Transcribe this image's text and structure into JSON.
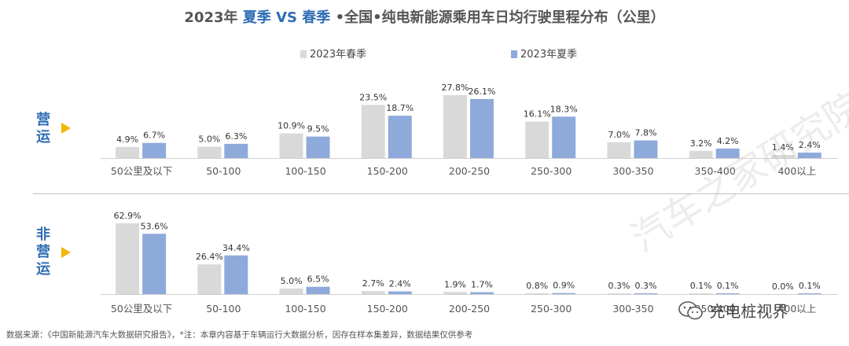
{
  "title": {
    "prefix": "2023年",
    "summer": "夏季",
    "vs": "VS",
    "spring": "春季",
    "suffix": "•全国•纯电新能源乘用车日均行驶里程分布（公里）"
  },
  "legend": {
    "spring": "2023年春季",
    "summer": "2023年夏季"
  },
  "colors": {
    "spring": "#d9d9d9",
    "summer": "#8eaadb",
    "accent": "#2f6db5",
    "arrow": "#f2b705"
  },
  "sections": {
    "operating": {
      "chars": [
        "营",
        "运"
      ]
    },
    "non_operating": {
      "chars": [
        "非",
        "营",
        "运"
      ]
    }
  },
  "chart_data": [
    {
      "type": "bar",
      "title": "营运",
      "categories": [
        "50公里及以下",
        "50-100",
        "100-150",
        "150-200",
        "200-250",
        "250-300",
        "300-350",
        "350-400",
        "400以上"
      ],
      "series": [
        {
          "name": "2023年春季",
          "values": [
            4.9,
            5.0,
            10.9,
            23.5,
            27.8,
            16.1,
            7.0,
            3.2,
            1.4
          ],
          "labels": [
            "4.9%",
            "5.0%",
            "10.9%",
            "23.5%",
            "27.8%",
            "16.1%",
            "7.0%",
            "3.2%",
            "1.4%"
          ]
        },
        {
          "name": "2023年夏季",
          "values": [
            6.7,
            6.3,
            9.5,
            18.7,
            26.1,
            18.3,
            7.8,
            4.2,
            2.4
          ],
          "labels": [
            "6.7%",
            "6.3%",
            "9.5%",
            "18.7%",
            "26.1%",
            "18.3%",
            "7.8%",
            "4.2%",
            "2.4%"
          ]
        }
      ],
      "unit": "%",
      "ylim": [
        0,
        30
      ],
      "grid": false,
      "legend": "top-center"
    },
    {
      "type": "bar",
      "title": "非营运",
      "categories": [
        "50公里及以下",
        "50-100",
        "100-150",
        "150-200",
        "200-250",
        "250-300",
        "300-350",
        "350-400",
        "400以上"
      ],
      "series": [
        {
          "name": "2023年春季",
          "values": [
            62.9,
            26.4,
            5.0,
            2.7,
            1.9,
            0.8,
            0.3,
            0.1,
            0.0
          ],
          "labels": [
            "62.9%",
            "26.4%",
            "5.0%",
            "2.7%",
            "1.9%",
            "0.8%",
            "0.3%",
            "0.1%",
            "0.0%"
          ]
        },
        {
          "name": "2023年夏季",
          "values": [
            53.6,
            34.4,
            6.5,
            2.4,
            1.7,
            0.9,
            0.3,
            0.1,
            0.1
          ],
          "labels": [
            "53.6%",
            "34.4%",
            "6.5%",
            "2.4%",
            "1.7%",
            "0.9%",
            "0.3%",
            "0.1%",
            "0.1%"
          ]
        }
      ],
      "unit": "%",
      "ylim": [
        0,
        65
      ],
      "grid": false,
      "legend": "top-center"
    }
  ],
  "footnote": "数据来源：《中国新能源汽车大数据研究报告》，*注：本章内容基于车辆运行大数据分析，因存在样本集差异，数据结果仅供参考",
  "brand": {
    "wechat": "充电桩视界",
    "wechat_icon": "wechat-icon",
    "watermark": "汽车之家研究院"
  }
}
